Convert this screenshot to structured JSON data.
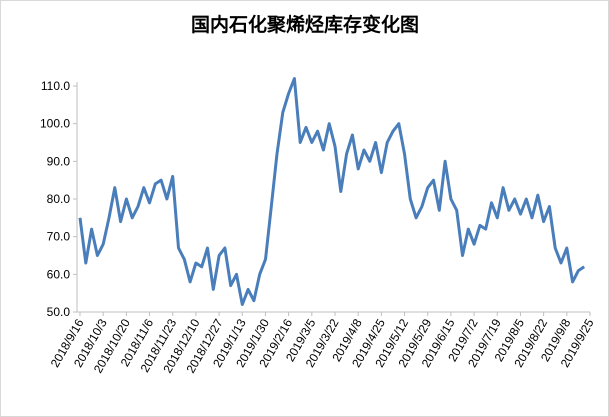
{
  "chart_data": {
    "type": "line",
    "title": "国内石化聚烯烃库存变化图",
    "categories": [
      "2018/9/16",
      null,
      null,
      null,
      "2018/10/3",
      null,
      null,
      null,
      "2018/10/20",
      null,
      null,
      null,
      "2018/11/6",
      null,
      null,
      null,
      "2018/11/23",
      null,
      null,
      null,
      "2018/12/10",
      null,
      null,
      null,
      "2018/12/27",
      null,
      null,
      null,
      "2019/1/13",
      null,
      null,
      null,
      "2019/1/30",
      null,
      null,
      null,
      "2019/2/16",
      null,
      null,
      null,
      "2019/3/5",
      null,
      null,
      null,
      "2019/3/22",
      null,
      null,
      null,
      "2019/4/8",
      null,
      null,
      null,
      "2019/4/25",
      null,
      null,
      null,
      "2019/5/12",
      null,
      null,
      null,
      "2019/5/29",
      null,
      null,
      null,
      "2019/6/15",
      null,
      null,
      null,
      "2019/7/2",
      null,
      null,
      null,
      "2019/7/19",
      null,
      null,
      null,
      "2019/8/5",
      null,
      null,
      null,
      "2019/8/22",
      null,
      null,
      null,
      "2019/9/8",
      null,
      null,
      null,
      "2019/9/25"
    ],
    "series": [
      {
        "color": "#4a7ebb",
        "values": [
          75,
          63,
          72,
          65,
          68,
          75,
          83,
          74,
          80,
          75,
          78,
          83,
          79,
          84,
          85,
          80,
          86,
          67,
          64,
          58,
          63,
          62,
          67,
          56,
          65,
          67,
          57,
          60,
          52,
          56,
          53,
          60,
          64,
          78,
          92,
          103,
          108,
          112,
          95,
          99,
          95,
          98,
          93,
          100,
          94,
          82,
          92,
          97,
          88,
          93,
          90,
          95,
          87,
          95,
          98,
          100,
          92,
          80,
          75,
          78,
          83,
          85,
          77,
          90,
          80,
          77,
          65,
          72,
          68,
          73,
          72,
          79,
          75,
          83,
          77,
          80,
          76,
          80,
          75,
          81,
          74,
          78,
          67,
          63,
          67,
          58,
          61,
          62,
          null
        ]
      }
    ],
    "ylim": [
      50,
      110
    ],
    "yticks": [
      {
        "value": 50,
        "label": "50.0"
      },
      {
        "value": 60,
        "label": "60.0"
      },
      {
        "value": 70,
        "label": "70.0"
      },
      {
        "value": 80,
        "label": "80.0"
      },
      {
        "value": 90,
        "label": "90.0"
      },
      {
        "value": 100,
        "label": "100.0"
      },
      {
        "value": 110,
        "label": "110.0"
      }
    ],
    "grid": false
  }
}
